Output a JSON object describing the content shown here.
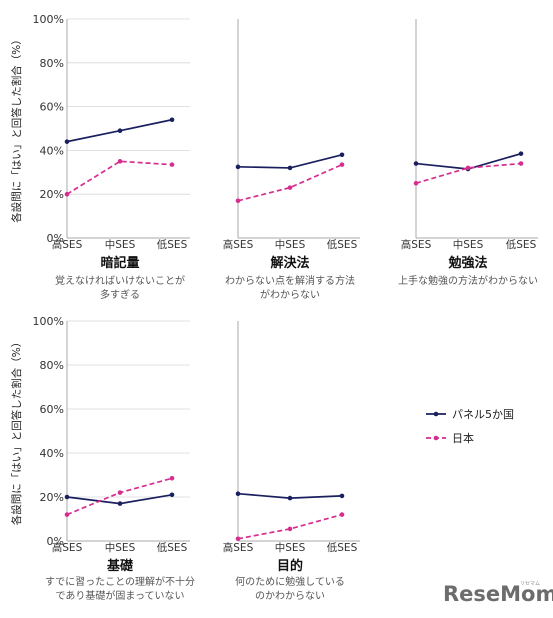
{
  "chart_data": {
    "type": "line",
    "y_axis_label": "各設問に「はい」と回答した割合（%）",
    "y_ticks": [
      "0%",
      "20%",
      "40%",
      "60%",
      "80%",
      "100%"
    ],
    "ylim": [
      0,
      100
    ],
    "categories": [
      "高SES",
      "中SES",
      "低SES"
    ],
    "legend": {
      "placement": "right",
      "entries": [
        {
          "name": "パネル5か国",
          "color": "#1a1f5e",
          "dash": "solid"
        },
        {
          "name": "日本",
          "color": "#d62d8f",
          "dash": "dashed"
        }
      ]
    },
    "panels": [
      {
        "title": "暗記量",
        "subtitle": [
          "覚えなければいけないことが",
          "多すぎる"
        ],
        "series": [
          {
            "name": "パネル5か国",
            "values": [
              44,
              49,
              54
            ]
          },
          {
            "name": "日本",
            "values": [
              20,
              35,
              33.5
            ]
          }
        ]
      },
      {
        "title": "解決法",
        "subtitle": [
          "わからない点を解消する方法",
          "がわからない"
        ],
        "series": [
          {
            "name": "パネル5か国",
            "values": [
              32.5,
              32,
              38
            ]
          },
          {
            "name": "日本",
            "values": [
              17,
              23,
              33.5
            ]
          }
        ]
      },
      {
        "title": "勉強法",
        "subtitle": [
          "上手な勉強の方法がわからない"
        ],
        "series": [
          {
            "name": "パネル5か国",
            "values": [
              34,
              31.5,
              38.5
            ]
          },
          {
            "name": "日本",
            "values": [
              25,
              32,
              34
            ]
          }
        ]
      },
      {
        "title": "基礎",
        "subtitle": [
          "すでに習ったことの理解が不十分",
          "であり基礎が固まっていない"
        ],
        "series": [
          {
            "name": "パネル5か国",
            "values": [
              20,
              17,
              21
            ]
          },
          {
            "name": "日本",
            "values": [
              12,
              22,
              28.5
            ]
          }
        ]
      },
      {
        "title": "目的",
        "subtitle": [
          "何のために勉強している",
          "のかわからない"
        ],
        "series": [
          {
            "name": "パネル5か国",
            "values": [
              21.5,
              19.5,
              20.5
            ]
          },
          {
            "name": "日本",
            "values": [
              1,
              5.5,
              12
            ]
          }
        ]
      }
    ]
  },
  "logo": {
    "text": "ReseMom",
    "small": "リセマム"
  }
}
